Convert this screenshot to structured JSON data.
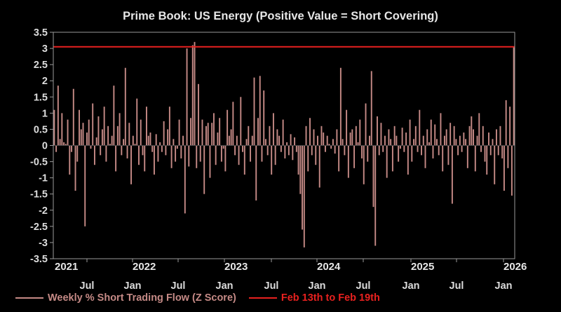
{
  "chart_data": {
    "type": "bar",
    "title": "Prime Book: US Energy (Positive Value = Short Covering)",
    "ylim": [
      -3.5,
      3.5
    ],
    "yticks": [
      "3.5",
      "3",
      "2.5",
      "2",
      "1.5",
      "1",
      "0.5",
      "0",
      "-0.5",
      "-1",
      "-1.5",
      "-2",
      "-2.5",
      "-3",
      "-3.5"
    ],
    "year_labels": [
      "2021",
      "2022",
      "2023",
      "2024",
      "2025",
      "2026"
    ],
    "month_labels": [
      "Jul",
      "Jan",
      "Jul",
      "Jan",
      "Jul",
      "Jan",
      "Jul",
      "Jan",
      "Jul",
      "Jan"
    ],
    "series": [
      {
        "name": "Weekly % Short Trading Flow (Z Score)",
        "color": "#c58a86",
        "values": [
          1.1,
          -0.2,
          1.85,
          0.2,
          1.0,
          0.1,
          0.05,
          0.8,
          -0.9,
          -0.2,
          1.75,
          -1.4,
          -0.5,
          1.1,
          0.5,
          0.7,
          -2.5,
          0.4,
          0.8,
          -0.1,
          1.3,
          -0.6,
          0.25,
          0.9,
          -0.3,
          0.5,
          1.2,
          -0.5,
          0.6,
          0.05,
          0.3,
          1.85,
          -0.8,
          0.6,
          1.0,
          -0.3,
          0.2,
          2.4,
          -0.4,
          0.7,
          -1.2,
          0.3,
          0.05,
          1.45,
          -0.6,
          0.8,
          -0.3,
          -0.8,
          1.2,
          0.3,
          0.4,
          -0.2,
          -0.9,
          0.35,
          -0.5,
          0.1,
          -0.2,
          0.75,
          -0.3,
          0.5,
          1.2,
          -0.7,
          0.2,
          -0.5,
          -0.1,
          0.8,
          -0.4,
          0.3,
          -2.1,
          3.0,
          -0.65,
          0.85,
          3.1,
          3.2,
          -0.7,
          1.9,
          -0.5,
          0.8,
          -1.5,
          0.6,
          0.7,
          -1.0,
          0.7,
          1.0,
          -0.6,
          0.4,
          0.85,
          -0.5,
          -0.1,
          -0.8,
          1.1,
          0.3,
          0.5,
          1.35,
          -0.3,
          0.3,
          -0.6,
          1.5,
          -0.2,
          -0.9,
          0.2,
          0.6,
          -0.5,
          0.3,
          2.1,
          -1.7,
          0.85,
          2.15,
          -0.5,
          1.7,
          0.2,
          -0.3,
          0.6,
          -0.9,
          1.0,
          -0.6,
          0.5,
          0.3,
          -0.2,
          0.8,
          -0.4,
          0.1,
          -0.3,
          0.35,
          -0.45,
          0.25,
          -0.2,
          -0.9,
          -1.5,
          -2.6,
          -3.15,
          0.6,
          -0.8,
          0.85,
          -0.3,
          0.5,
          -0.6,
          0.3,
          -1.3,
          0.6,
          0.4,
          -0.2,
          0.3,
          0.05,
          -0.1,
          0.2,
          -0.25,
          0.5,
          -0.8,
          2.4,
          0.2,
          -0.3,
          1.1,
          -1.0,
          0.4,
          0.5,
          -0.7,
          0.6,
          0.1,
          0.8,
          -0.4,
          -1.2,
          1.3,
          -0.5,
          0.3,
          2.3,
          -1.9,
          -3.1,
          0.9,
          -0.3,
          0.7,
          -0.2,
          0.3,
          -1.0,
          0.5,
          0.2,
          -0.8,
          0.6,
          0.3,
          -0.5,
          -0.1,
          0.55,
          -0.2,
          0.4,
          -0.9,
          0.8,
          -0.5,
          0.2,
          0.6,
          -0.2,
          1.1,
          -0.3,
          0.3,
          -0.7,
          0.5,
          0.1,
          0.8,
          -0.4,
          0.65,
          0.2,
          -0.3,
          1.0,
          -0.8,
          0.3,
          0.5,
          -0.6,
          0.7,
          -1.8,
          0.6,
          0.2,
          -0.3,
          0.3,
          -0.2,
          0.4,
          0.2,
          -0.7,
          0.6,
          0.9,
          0.5,
          -0.8,
          0.3,
          1.0,
          -0.2,
          0.6,
          -0.5,
          -0.9,
          0.4,
          -0.3,
          0.2,
          -1.2,
          0.5,
          -0.3,
          0.6,
          -0.4,
          -1.4,
          1.4,
          -0.7,
          1.2,
          -1.55,
          3.05
        ]
      },
      {
        "name": "Feb 13th to Feb 19th",
        "color": "#e8211f",
        "values": [
          3.05
        ]
      }
    ]
  }
}
